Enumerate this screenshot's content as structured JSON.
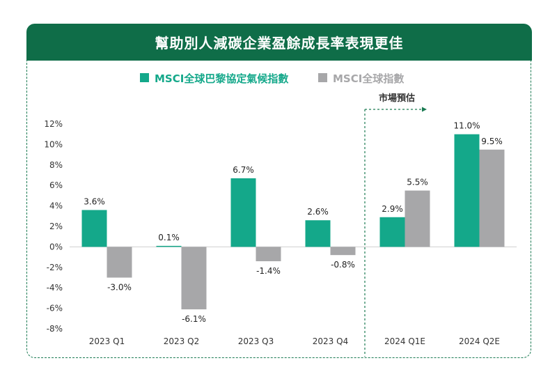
{
  "title": "幫助別人減碳企業盈餘成長率表現更佳",
  "chart_data": {
    "type": "bar",
    "categories": [
      "2023 Q1",
      "2023 Q2",
      "2023 Q3",
      "2023 Q4",
      "2024 Q1E",
      "2024 Q2E"
    ],
    "series": [
      {
        "name": "MSCI全球巴黎協定氣候指數",
        "color": "#14a88a",
        "values": [
          3.6,
          0.1,
          6.7,
          2.6,
          2.9,
          11.0
        ],
        "labels": [
          "3.6%",
          "0.1%",
          "6.7%",
          "2.6%",
          "2.9%",
          "11.0%"
        ]
      },
      {
        "name": "MSCI全球指數",
        "color": "#a7a7a9",
        "values": [
          -3.0,
          -6.1,
          -1.4,
          -0.8,
          5.5,
          9.5
        ],
        "labels": [
          "-3.0%",
          "-6.1%",
          "-1.4%",
          "-0.8%",
          "5.5%",
          "9.5%"
        ]
      }
    ],
    "ylim": [
      -8,
      12
    ],
    "yticks": [
      12,
      10,
      8,
      6,
      4,
      2,
      0,
      -2,
      -4,
      -6,
      -8
    ],
    "ytick_labels": [
      "12%",
      "10%",
      "8%",
      "6%",
      "4%",
      "2%",
      "0%",
      "-2%",
      "-4%",
      "-6%",
      "-8%"
    ],
    "legend_position": "top",
    "forecast_annotation": {
      "label": "市場預估",
      "start_category_index": 4
    },
    "grid": false
  }
}
